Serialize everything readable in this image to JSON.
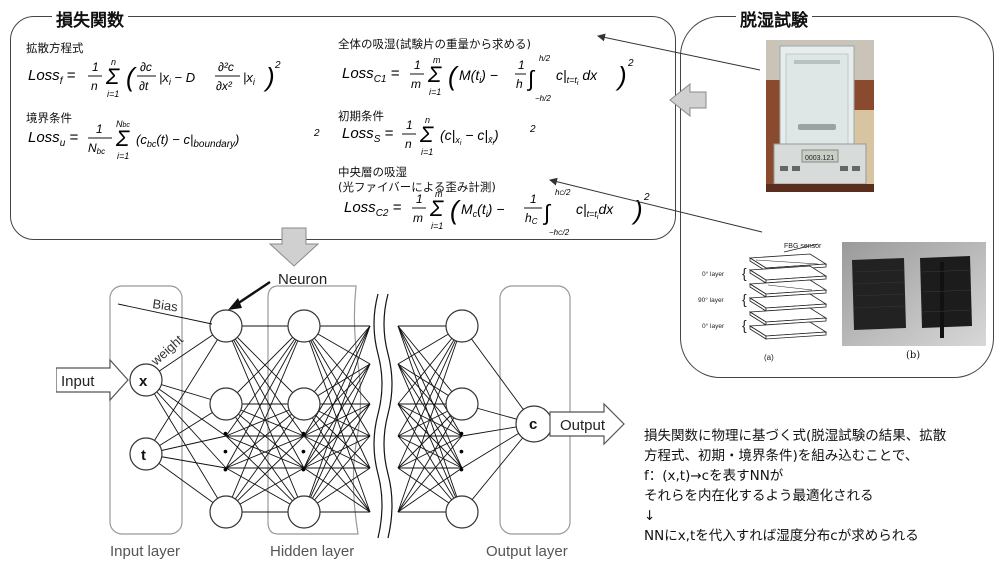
{
  "loss_panel": {
    "title": "損失関数",
    "diffusion": {
      "label": "拡散方程式",
      "equation": "Loss_f = 1/n Σ_{i=1}^{n} ( ∂c/∂t |x_i − D ∂²c/∂x² |x_i )²"
    },
    "boundary": {
      "label": "境界条件",
      "equation": "Loss_u = 1/N_bc Σ_{i=1}^{N_bc} ( c_bc(t) − c|boundary )²"
    },
    "total_absorption": {
      "label": "全体の吸湿(試験片の重量から求める)",
      "equation": "Loss_C1 = 1/m Σ_{i=1}^{m} ( M(t_i) − 1/h ∫_{−h/2}^{h/2} c|_{t=t_i} dx )²"
    },
    "initial": {
      "label": "初期条件",
      "equation": "Loss_S = 1/n Σ_{i=1}^{n} ( c|x_i − c|x̄_i )²"
    },
    "middle_layer": {
      "label_line1": "中央層の吸湿",
      "label_line2": "(光ファイバーによる歪み計測)",
      "equation": "Loss_C2 = 1/m Σ_{i=1}^{m} ( M_c(t_i) − 1/h_C ∫_{−h_C/2}^{h_C/2} c|_{t=t_i} dx )²"
    }
  },
  "desorption_panel": {
    "title": "脱湿試験",
    "balance_display": "0003.121",
    "fbg_sensor_label": "FBG sensor",
    "layers": [
      "0° layer",
      "90° layer",
      "0° layer"
    ],
    "caption_a": "(a)",
    "caption_b": "(b)"
  },
  "network": {
    "neuron_label": "Neuron",
    "bias_label": "Bias",
    "weight_label": "weight",
    "input_label": "Input",
    "output_label": "Output",
    "input_x": "x",
    "input_t": "t",
    "output_c": "c",
    "dots": "•",
    "input_layer": "Input layer",
    "hidden_layer": "Hidden layer",
    "output_layer": "Output layer"
  },
  "notes": {
    "line1": "損失関数に物理に基づく式(脱湿試験の結果、拡散",
    "line2": "方程式、初期・境界条件)を組み込むことで、",
    "line3": "f：(x,t)→cを表すNNが",
    "line4": "それらを内在化するよう最適化される",
    "line5": "↓",
    "line6": "NNにx,tを代入すれば湿度分布cが求められる"
  },
  "colors": {
    "border": "#444444",
    "arrow": "#c8c8c8",
    "text": "#111111"
  }
}
